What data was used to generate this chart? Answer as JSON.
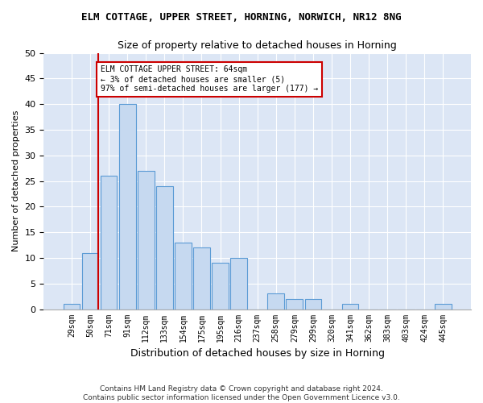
{
  "title1": "ELM COTTAGE, UPPER STREET, HORNING, NORWICH, NR12 8NG",
  "title2": "Size of property relative to detached houses in Horning",
  "xlabel": "Distribution of detached houses by size in Horning",
  "ylabel": "Number of detached properties",
  "footnote1": "Contains HM Land Registry data © Crown copyright and database right 2024.",
  "footnote2": "Contains public sector information licensed under the Open Government Licence v3.0.",
  "bin_labels": [
    "29sqm",
    "50sqm",
    "71sqm",
    "91sqm",
    "112sqm",
    "133sqm",
    "154sqm",
    "175sqm",
    "195sqm",
    "216sqm",
    "237sqm",
    "258sqm",
    "279sqm",
    "299sqm",
    "320sqm",
    "341sqm",
    "362sqm",
    "383sqm",
    "403sqm",
    "424sqm",
    "445sqm"
  ],
  "bar_values": [
    1,
    11,
    26,
    40,
    27,
    24,
    13,
    12,
    9,
    10,
    0,
    3,
    2,
    2,
    0,
    1,
    0,
    0,
    0,
    0,
    1
  ],
  "bar_color": "#c6d9f0",
  "bar_edge_color": "#5b9bd5",
  "annotation_line1": "ELM COTTAGE UPPER STREET: 64sqm",
  "annotation_line2": "← 3% of detached houses are smaller (5)",
  "annotation_line3": "97% of semi-detached houses are larger (177) →",
  "annotation_box_facecolor": "#ffffff",
  "annotation_box_edgecolor": "#cc0000",
  "line_color": "#cc0000",
  "ylim": [
    0,
    50
  ],
  "yticks": [
    0,
    5,
    10,
    15,
    20,
    25,
    30,
    35,
    40,
    45,
    50
  ],
  "background_color": "#dce6f5",
  "grid_color": "#ffffff",
  "fig_facecolor": "#ffffff",
  "property_bar_index": 1
}
